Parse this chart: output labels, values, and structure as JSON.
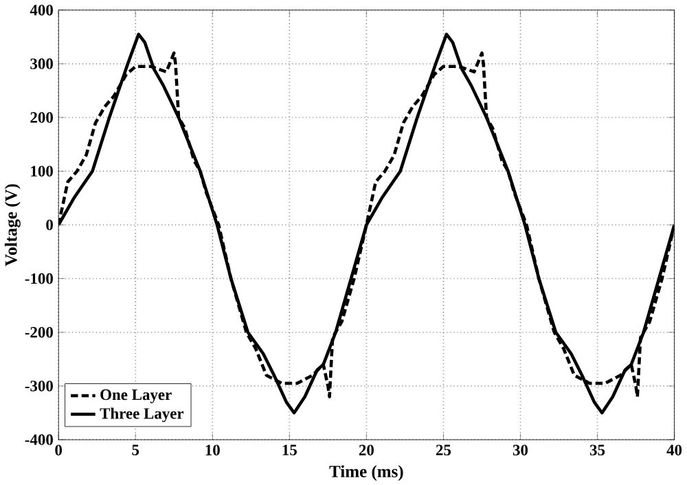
{
  "chart_data": {
    "type": "line",
    "xlabel": "Time (ms)",
    "ylabel": "Voltage (V)",
    "xlim": [
      0,
      40
    ],
    "ylim": [
      -400,
      400
    ],
    "xticks": [
      0,
      5,
      10,
      15,
      20,
      25,
      30,
      35,
      40
    ],
    "yticks": [
      -400,
      -300,
      -200,
      -100,
      0,
      100,
      200,
      300,
      400
    ],
    "grid": true,
    "legend": "bottom left",
    "series": [
      {
        "name": "One Layer",
        "color": "#000000",
        "line_style": "dashed",
        "x": [
          0,
          0.6,
          1.2,
          1.8,
          2.4,
          3,
          3.6,
          4.4,
          5,
          6,
          7,
          7.5,
          7.6,
          7.8,
          8.2,
          8.8,
          9.2,
          9.6,
          10.4,
          11.2,
          12.2,
          12.8,
          13.5,
          14.5,
          15.5,
          16.5,
          17.2,
          17.5,
          17.6,
          17.8,
          18.4,
          19.2,
          20,
          20.6,
          21.2,
          21.8,
          22.4,
          23,
          23.6,
          24.4,
          25,
          26,
          27,
          27.5,
          27.6,
          27.8,
          28.2,
          28.8,
          29.2,
          29.6,
          30.4,
          31.2,
          32.2,
          32.8,
          33.5,
          34.5,
          35.5,
          36.5,
          37.2,
          37.5,
          37.6,
          37.8,
          38.4,
          39.2,
          40
        ],
        "values": [
          0,
          80,
          100,
          130,
          190,
          220,
          240,
          280,
          295,
          295,
          285,
          320,
          300,
          200,
          180,
          120,
          100,
          60,
          0,
          -100,
          -200,
          -230,
          -280,
          -295,
          -295,
          -280,
          -260,
          -300,
          -320,
          -210,
          -180,
          -100,
          0,
          80,
          100,
          130,
          190,
          220,
          240,
          280,
          295,
          295,
          285,
          320,
          300,
          200,
          180,
          120,
          100,
          60,
          0,
          -100,
          -200,
          -230,
          -280,
          -295,
          -295,
          -280,
          -260,
          -300,
          -320,
          -210,
          -180,
          -100,
          0
        ]
      },
      {
        "name": "Three Layer",
        "color": "#000000",
        "line_style": "solid",
        "x": [
          0,
          1,
          2.2,
          3.3,
          4.5,
          5.2,
          5.6,
          6.2,
          6.8,
          7.8,
          9.2,
          10.3,
          11.2,
          12.3,
          13.3,
          14,
          14.8,
          15.3,
          16,
          16.8,
          17.2,
          18,
          19,
          20,
          21,
          22.2,
          23.3,
          24.5,
          25.2,
          25.6,
          26.2,
          26.8,
          27.8,
          29.2,
          30.3,
          31.2,
          32.3,
          33.3,
          34,
          34.8,
          35.3,
          36,
          36.8,
          37.2,
          38,
          39,
          40
        ],
        "values": [
          0,
          50,
          100,
          200,
          300,
          355,
          340,
          290,
          260,
          200,
          100,
          0,
          -100,
          -200,
          -240,
          -280,
          -330,
          -350,
          -320,
          -270,
          -260,
          -200,
          -100,
          0,
          50,
          100,
          200,
          300,
          355,
          340,
          290,
          260,
          200,
          100,
          0,
          -100,
          -200,
          -240,
          -280,
          -330,
          -350,
          -320,
          -270,
          -260,
          -200,
          -100,
          0
        ]
      }
    ]
  }
}
